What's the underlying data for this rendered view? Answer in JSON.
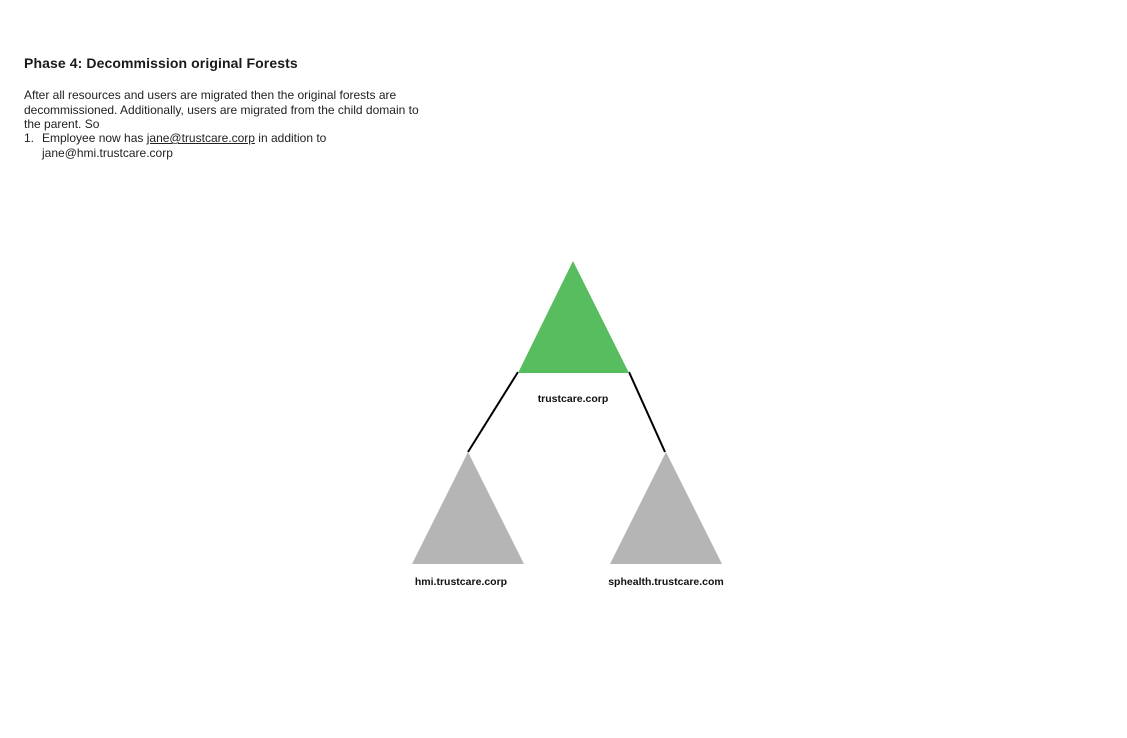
{
  "page": {
    "title": "Phase 4: Decommission original Forests",
    "intro": "After all resources and users are migrated then the original forests are decommissioned. Additionally, users are migrated from the child domain to the parent. So",
    "steps": [
      {
        "number": "1.",
        "text_before": "Employee now has ",
        "link_text": "jane@trustcare.corp",
        "text_after": " in addition to jane@hmi.trustcare.corp"
      }
    ]
  },
  "diagram": {
    "nodes": {
      "root": {
        "label": "trustcare.corp",
        "color": "#57bd5f"
      },
      "left_child": {
        "label": "hmi.trustcare.corp",
        "color": "#b5b5b5"
      },
      "right_child": {
        "label": "sphealth.trustcare.com",
        "color": "#b5b5b5"
      }
    },
    "connector_color": "#000000"
  }
}
